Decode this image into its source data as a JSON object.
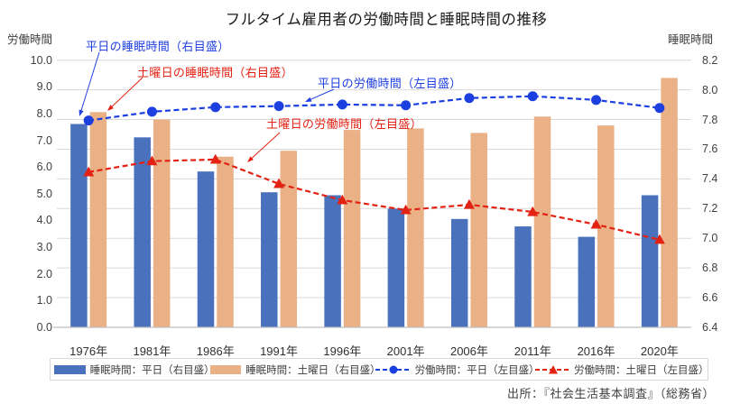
{
  "title": "フルタイム雇用者の労働時間と睡眠時間の推移",
  "source": "出所：『社会生活基本調査』（総務省）",
  "chart_data": {
    "type": "combo-bar-line",
    "categories": [
      "1976年",
      "1981年",
      "1986年",
      "1991年",
      "1996年",
      "2001年",
      "2006年",
      "2011年",
      "2016年",
      "2020年"
    ],
    "left_axis": {
      "title": "労働時間",
      "min": 0,
      "max": 10,
      "step": 1,
      "unit": "hours"
    },
    "right_axis": {
      "title": "睡眠時間",
      "min": 6.4,
      "max": 8.2,
      "step": 0.2,
      "unit": "hours"
    },
    "grid": "horizontal, at right-axis 0.2 steps",
    "legend_position": "bottom, boxed",
    "series": [
      {
        "name": "睡眠時間：平日（右目盛）",
        "type": "bar",
        "axis": "right",
        "color": "#4a72bc",
        "values": [
          7.77,
          7.68,
          7.45,
          7.31,
          7.29,
          7.2,
          7.13,
          7.08,
          7.01,
          7.29
        ]
      },
      {
        "name": "睡眠時間：土曜日（右目盛）",
        "type": "bar",
        "axis": "right",
        "color": "#eab186",
        "values": [
          7.85,
          7.8,
          7.55,
          7.59,
          7.73,
          7.74,
          7.71,
          7.82,
          7.76,
          8.08
        ]
      },
      {
        "name": "労働時間：平日（左目盛）",
        "type": "line",
        "axis": "left",
        "color": "#1c3fe0",
        "marker": "circle",
        "values": [
          7.74,
          8.07,
          8.24,
          8.28,
          8.34,
          8.31,
          8.58,
          8.65,
          8.51,
          8.21
        ]
      },
      {
        "name": "労働時間：土曜日（左目盛）",
        "type": "line",
        "axis": "left",
        "color": "#e32213",
        "marker": "triangle",
        "values": [
          5.81,
          6.22,
          6.28,
          5.37,
          4.76,
          4.39,
          4.59,
          4.32,
          3.85,
          3.28
        ]
      }
    ]
  },
  "annotations": [
    {
      "text": "平日の睡眠時間（右目盛）",
      "color": "#2040e0",
      "points_to": "1976 weekday sleep bar"
    },
    {
      "text": "土曜日の睡眠時間（右目盛）",
      "color": "#e32213",
      "points_to": "1976 Saturday sleep bar"
    },
    {
      "text": "平日の労働時間（左目盛）",
      "color": "#2040e0",
      "points_to": "weekday work-hours line"
    },
    {
      "text": "土曜日の労働時間（左目盛）",
      "color": "#e32213",
      "points_to": "Saturday work-hours line"
    }
  ]
}
